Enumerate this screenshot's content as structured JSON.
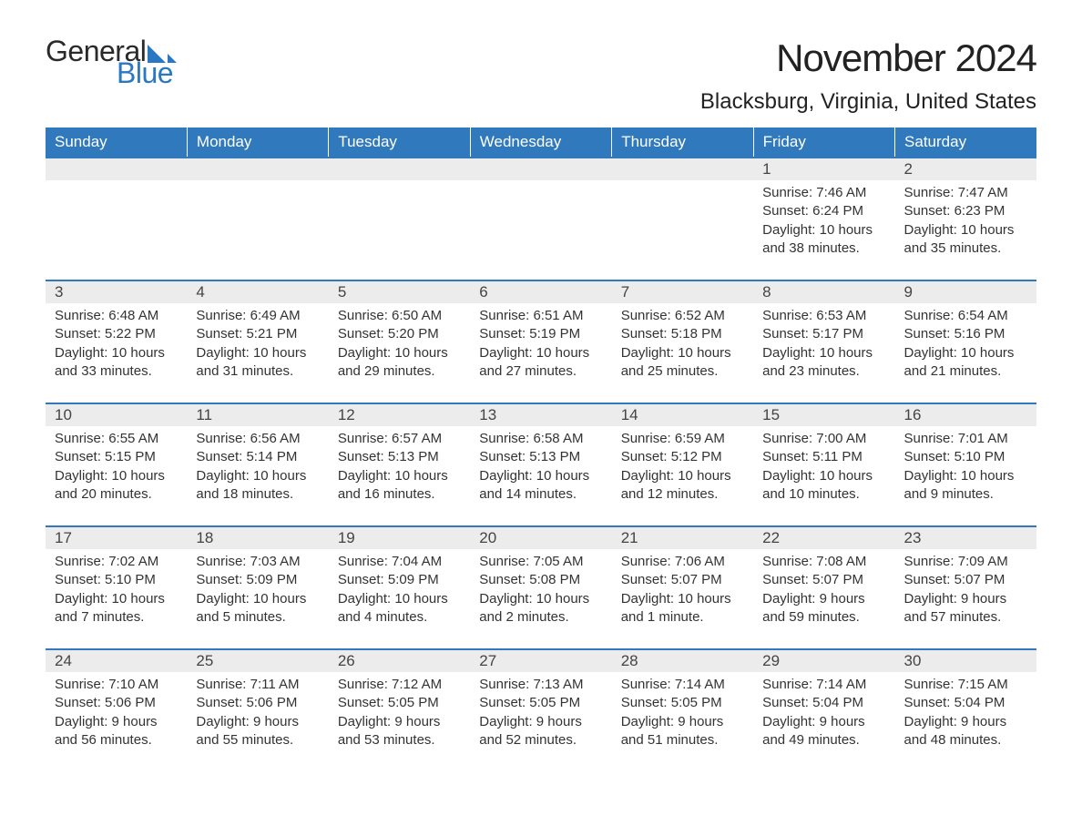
{
  "brand": {
    "text1": "General",
    "text2": "Blue",
    "sail_color": "#2b78c2",
    "text1_color": "#2a2a2a"
  },
  "title": "November 2024",
  "location": "Blacksburg, Virginia, United States",
  "colors": {
    "header_bg": "#3079bc",
    "header_text": "#ffffff",
    "daynum_bg": "#ececec",
    "border_top": "#3079bc",
    "body_text": "#333333",
    "page_bg": "#ffffff"
  },
  "day_headers": [
    "Sunday",
    "Monday",
    "Tuesday",
    "Wednesday",
    "Thursday",
    "Friday",
    "Saturday"
  ],
  "weeks": [
    [
      null,
      null,
      null,
      null,
      null,
      {
        "n": "1",
        "sunrise": "7:46 AM",
        "sunset": "6:24 PM",
        "daylight": "10 hours and 38 minutes."
      },
      {
        "n": "2",
        "sunrise": "7:47 AM",
        "sunset": "6:23 PM",
        "daylight": "10 hours and 35 minutes."
      }
    ],
    [
      {
        "n": "3",
        "sunrise": "6:48 AM",
        "sunset": "5:22 PM",
        "daylight": "10 hours and 33 minutes."
      },
      {
        "n": "4",
        "sunrise": "6:49 AM",
        "sunset": "5:21 PM",
        "daylight": "10 hours and 31 minutes."
      },
      {
        "n": "5",
        "sunrise": "6:50 AM",
        "sunset": "5:20 PM",
        "daylight": "10 hours and 29 minutes."
      },
      {
        "n": "6",
        "sunrise": "6:51 AM",
        "sunset": "5:19 PM",
        "daylight": "10 hours and 27 minutes."
      },
      {
        "n": "7",
        "sunrise": "6:52 AM",
        "sunset": "5:18 PM",
        "daylight": "10 hours and 25 minutes."
      },
      {
        "n": "8",
        "sunrise": "6:53 AM",
        "sunset": "5:17 PM",
        "daylight": "10 hours and 23 minutes."
      },
      {
        "n": "9",
        "sunrise": "6:54 AM",
        "sunset": "5:16 PM",
        "daylight": "10 hours and 21 minutes."
      }
    ],
    [
      {
        "n": "10",
        "sunrise": "6:55 AM",
        "sunset": "5:15 PM",
        "daylight": "10 hours and 20 minutes."
      },
      {
        "n": "11",
        "sunrise": "6:56 AM",
        "sunset": "5:14 PM",
        "daylight": "10 hours and 18 minutes."
      },
      {
        "n": "12",
        "sunrise": "6:57 AM",
        "sunset": "5:13 PM",
        "daylight": "10 hours and 16 minutes."
      },
      {
        "n": "13",
        "sunrise": "6:58 AM",
        "sunset": "5:13 PM",
        "daylight": "10 hours and 14 minutes."
      },
      {
        "n": "14",
        "sunrise": "6:59 AM",
        "sunset": "5:12 PM",
        "daylight": "10 hours and 12 minutes."
      },
      {
        "n": "15",
        "sunrise": "7:00 AM",
        "sunset": "5:11 PM",
        "daylight": "10 hours and 10 minutes."
      },
      {
        "n": "16",
        "sunrise": "7:01 AM",
        "sunset": "5:10 PM",
        "daylight": "10 hours and 9 minutes."
      }
    ],
    [
      {
        "n": "17",
        "sunrise": "7:02 AM",
        "sunset": "5:10 PM",
        "daylight": "10 hours and 7 minutes."
      },
      {
        "n": "18",
        "sunrise": "7:03 AM",
        "sunset": "5:09 PM",
        "daylight": "10 hours and 5 minutes."
      },
      {
        "n": "19",
        "sunrise": "7:04 AM",
        "sunset": "5:09 PM",
        "daylight": "10 hours and 4 minutes."
      },
      {
        "n": "20",
        "sunrise": "7:05 AM",
        "sunset": "5:08 PM",
        "daylight": "10 hours and 2 minutes."
      },
      {
        "n": "21",
        "sunrise": "7:06 AM",
        "sunset": "5:07 PM",
        "daylight": "10 hours and 1 minute."
      },
      {
        "n": "22",
        "sunrise": "7:08 AM",
        "sunset": "5:07 PM",
        "daylight": "9 hours and 59 minutes."
      },
      {
        "n": "23",
        "sunrise": "7:09 AM",
        "sunset": "5:07 PM",
        "daylight": "9 hours and 57 minutes."
      }
    ],
    [
      {
        "n": "24",
        "sunrise": "7:10 AM",
        "sunset": "5:06 PM",
        "daylight": "9 hours and 56 minutes."
      },
      {
        "n": "25",
        "sunrise": "7:11 AM",
        "sunset": "5:06 PM",
        "daylight": "9 hours and 55 minutes."
      },
      {
        "n": "26",
        "sunrise": "7:12 AM",
        "sunset": "5:05 PM",
        "daylight": "9 hours and 53 minutes."
      },
      {
        "n": "27",
        "sunrise": "7:13 AM",
        "sunset": "5:05 PM",
        "daylight": "9 hours and 52 minutes."
      },
      {
        "n": "28",
        "sunrise": "7:14 AM",
        "sunset": "5:05 PM",
        "daylight": "9 hours and 51 minutes."
      },
      {
        "n": "29",
        "sunrise": "7:14 AM",
        "sunset": "5:04 PM",
        "daylight": "9 hours and 49 minutes."
      },
      {
        "n": "30",
        "sunrise": "7:15 AM",
        "sunset": "5:04 PM",
        "daylight": "9 hours and 48 minutes."
      }
    ]
  ],
  "labels": {
    "sunrise": "Sunrise: ",
    "sunset": "Sunset: ",
    "daylight": "Daylight: "
  }
}
